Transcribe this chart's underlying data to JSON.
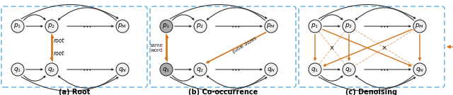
{
  "bg_color": "#ffffff",
  "orange_color": "#D4721A",
  "node_edge_color": "#333333",
  "node_fill_light": "#f2f2f2",
  "node_fill_dark": "#aaaaaa",
  "dashed_box_color": "#5aade0",
  "panel_titles": [
    "(a) Root",
    "(b) Co-occurrence",
    "(c) Denoising"
  ],
  "figsize": [
    6.4,
    1.34
  ],
  "dpi": 100
}
